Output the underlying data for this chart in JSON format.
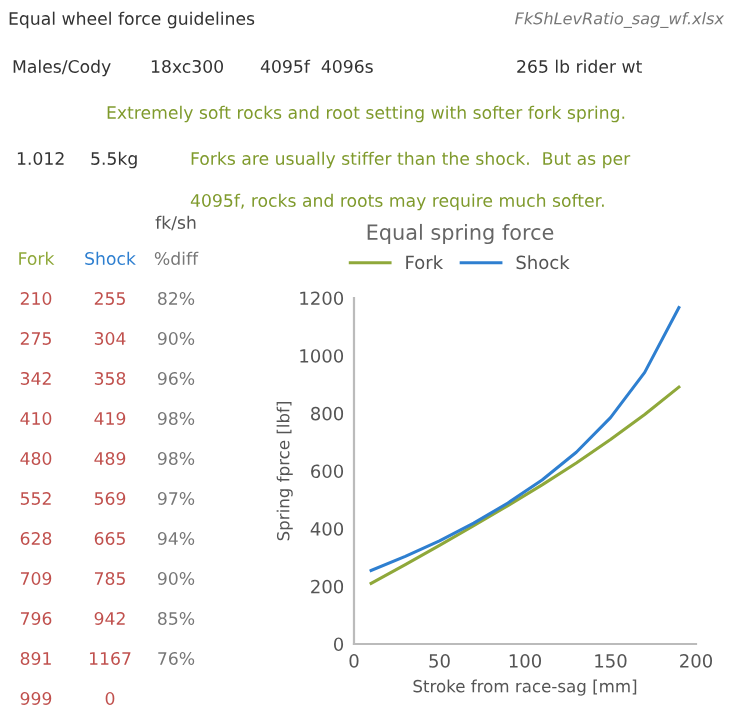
{
  "chart_data": {
    "type": "line",
    "title": "Equal spring force",
    "xlabel": "Stroke from race-sag [mm]",
    "ylabel": "Spring fprce [lbf]",
    "x": [
      10,
      30,
      50,
      70,
      90,
      110,
      130,
      150,
      170,
      190
    ],
    "series": [
      {
        "name": "Fork",
        "color": "#8fa83a",
        "values": [
          210,
          275,
          342,
          410,
          480,
          552,
          628,
          709,
          796,
          891
        ]
      },
      {
        "name": "Shock",
        "color": "#2e7fd0",
        "values": [
          255,
          304,
          358,
          419,
          489,
          569,
          665,
          785,
          942,
          1167
        ]
      }
    ],
    "xlim": [
      0,
      200
    ],
    "xticks": [
      0,
      50,
      100,
      150,
      200
    ],
    "ylim": [
      0,
      1200
    ],
    "yticks": [
      0,
      200,
      400,
      600,
      800,
      1000,
      1200
    ],
    "grid": false,
    "legend": "top",
    "marker": "none",
    "line_style": "solid",
    "annotations": [
      "Equal wheel force guidelines",
      "FkShLevRatio_sag_wf.xlsx",
      "Males/Cody",
      "18xc300",
      "4095f  4096s",
      "265 lb rider wt",
      "Extremely soft rocks and root setting with softer fork spring.",
      "1.012",
      "5.5kg",
      "Forks are usually stiffer than the shock.  But as per",
      "4095f, rocks and roots may require much softer.",
      "fk/sh",
      "Fork",
      "Shock",
      "%diff",
      "210",
      "255",
      "82%",
      "275",
      "304",
      "90%",
      "342",
      "358",
      "96%",
      "410",
      "419",
      "98%",
      "480",
      "489",
      "98%",
      "552",
      "569",
      "97%",
      "628",
      "665",
      "94%",
      "709",
      "785",
      "90%",
      "796",
      "942",
      "85%",
      "891",
      "1167",
      "76%",
      "999",
      "0"
    ]
  }
}
